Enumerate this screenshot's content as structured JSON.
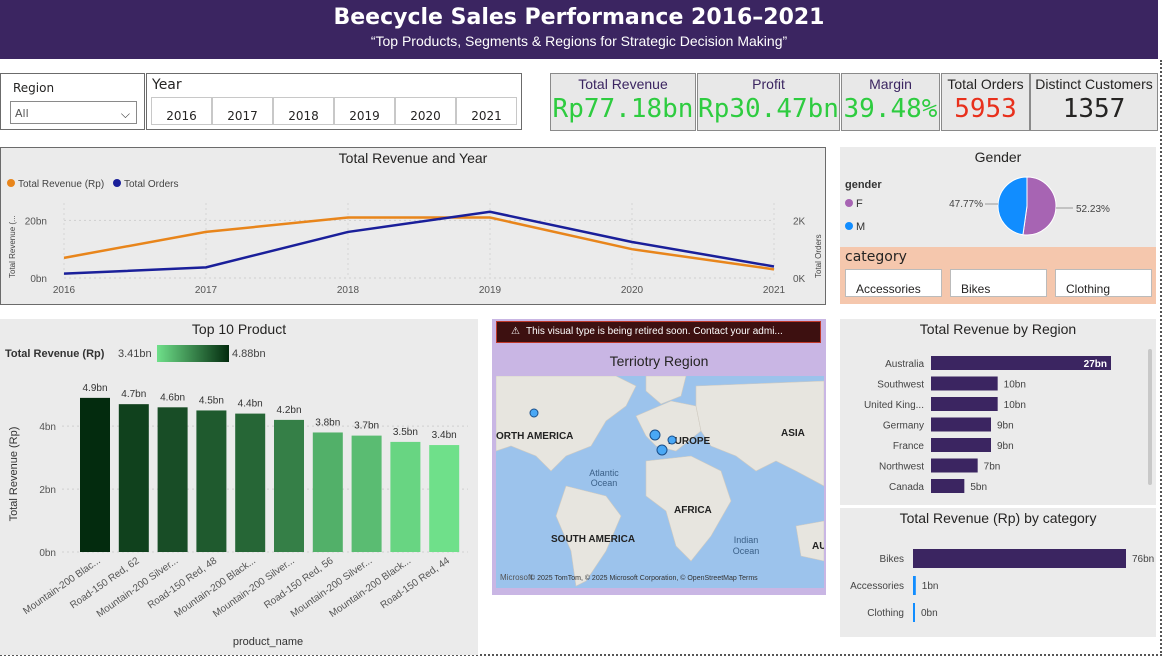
{
  "header": {
    "title": "Beecycle Sales Performance 2016–2021",
    "subtitle": "“Top Products, Segments & Regions for Strategic Decision Making”"
  },
  "slicers": {
    "region_label": "Region",
    "region_value": "All",
    "year_label": "Year",
    "years": [
      "2016",
      "2017",
      "2018",
      "2019",
      "2020",
      "2021"
    ]
  },
  "kpis": [
    {
      "label": "Total Revenue",
      "value": "Rp77.18bn",
      "color": "#2ecc40"
    },
    {
      "label": "Profit",
      "value": "Rp30.47bn",
      "color": "#2ecc40"
    },
    {
      "label": "Margin",
      "value": "39.48%",
      "color": "#2ecc40"
    },
    {
      "label": "Total Orders",
      "value": "5953",
      "color": "#e8301c"
    },
    {
      "label": "Distinct Customers",
      "value": "1357",
      "color": "#252423"
    }
  ],
  "line_chart": {
    "title": "Total Revenue and Year",
    "legend": [
      "Total Revenue (Rp)",
      "Total Orders"
    ],
    "ylabel_left": "Total Revenue (...",
    "ylabel_right": "Total Orders",
    "left_ticks": [
      "20bn",
      "0bn"
    ],
    "right_ticks": [
      "2K",
      "0K"
    ],
    "colors": {
      "revenue": "#e8851b",
      "orders": "#1a1f9a"
    }
  },
  "gender": {
    "title": "Gender",
    "legend_title": "gender",
    "items": [
      {
        "label": "F",
        "color": "#a764b3"
      },
      {
        "label": "M",
        "color": "#118dff"
      }
    ],
    "pct_m": "47.77%",
    "pct_f": "52.23%"
  },
  "category_slicer": {
    "label": "category",
    "items": [
      "Accessories",
      "Bikes",
      "Clothing"
    ]
  },
  "top_products": {
    "title": "Top 10 Product",
    "legend_label": "Total Revenue (Rp)",
    "legend_min": "3.41bn",
    "legend_max": "4.88bn",
    "ylabel": "Total Revenue (Rp)",
    "xlabel": "product_name",
    "y_ticks": [
      "4bn",
      "2bn",
      "0bn"
    ]
  },
  "map": {
    "warning": "This visual type is being retired soon. Contact your admi...",
    "title": "Terriotry Region",
    "labels": [
      "ORTH AMERICA",
      "EUROPE",
      "ASIA",
      "Atlantic",
      "Ocean",
      "AFRICA",
      "SOUTH AMERICA",
      "Indian",
      "Ocean",
      "AU"
    ],
    "copyright": "© 2025 TomTom, © 2025 Microsoft Corporation, © OpenStreetMap  Terms",
    "brand": "Microsoft"
  },
  "region_chart": {
    "title": "Total Revenue by Region"
  },
  "category_chart": {
    "title": "Total Revenue (Rp) by category"
  },
  "chart_data": [
    {
      "type": "line",
      "title": "Total Revenue and Year",
      "x": [
        2016,
        2017,
        2018,
        2019,
        2020,
        2021
      ],
      "series": [
        {
          "name": "Total Revenue (Rp)",
          "axis": "left",
          "unit": "bn",
          "values": [
            7,
            16,
            21,
            21,
            10,
            3
          ]
        },
        {
          "name": "Total Orders",
          "axis": "right",
          "values": [
            150,
            370,
            1600,
            2300,
            1250,
            400
          ]
        }
      ],
      "ylim_left": [
        0,
        25
      ],
      "ylim_right": [
        0,
        2500
      ]
    },
    {
      "type": "pie",
      "title": "Gender",
      "slices": [
        {
          "label": "F",
          "value": 52.23
        },
        {
          "label": "M",
          "value": 47.77
        }
      ]
    },
    {
      "type": "bar",
      "title": "Top 10 Product",
      "categories": [
        "Mountain-200 Blac...",
        "Road-150 Red, 62",
        "Mountain-200 Silver...",
        "Road-150 Red, 48",
        "Mountain-200 Black...",
        "Mountain-200 Silver...",
        "Road-150 Red, 56",
        "Mountain-200 Silver...",
        "Mountain-200 Black...",
        "Road-150 Red, 44"
      ],
      "values": [
        4.9,
        4.7,
        4.6,
        4.5,
        4.4,
        4.2,
        3.8,
        3.7,
        3.5,
        3.4
      ],
      "data_labels": [
        "4.9bn",
        "4.7bn",
        "4.6bn",
        "4.5bn",
        "4.4bn",
        "4.2bn",
        "3.8bn",
        "3.7bn",
        "3.5bn",
        "3.4bn"
      ],
      "ylim": [
        0,
        5.5
      ],
      "color_range": [
        "#6fe08a",
        "#032b0e"
      ]
    },
    {
      "type": "bar",
      "orientation": "horizontal",
      "title": "Total Revenue by Region",
      "categories": [
        "Australia",
        "Southwest",
        "United King...",
        "Germany",
        "France",
        "Northwest",
        "Canada"
      ],
      "values": [
        27,
        10,
        10,
        9,
        9,
        7,
        5
      ],
      "data_labels": [
        "27bn",
        "10bn",
        "10bn",
        "9bn",
        "9bn",
        "7bn",
        "5bn"
      ],
      "color": "#3b2561"
    },
    {
      "type": "bar",
      "orientation": "horizontal",
      "title": "Total Revenue (Rp) by category",
      "categories": [
        "Bikes",
        "Accessories",
        "Clothing"
      ],
      "values": [
        76,
        1,
        0
      ],
      "data_labels": [
        "76bn",
        "1bn",
        "0bn"
      ],
      "colors": [
        "#3b2561",
        "#118dff",
        "#118dff"
      ]
    }
  ]
}
